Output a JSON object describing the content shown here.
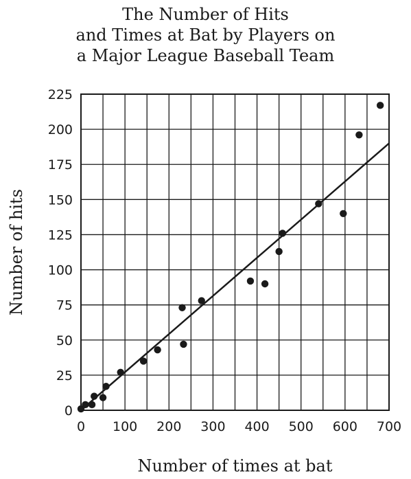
{
  "chart_data": {
    "type": "scatter",
    "title_lines": [
      "The Number of Hits",
      "and Times at Bat by Players on",
      "a Major League Baseball Team"
    ],
    "xlabel": "Number of times at bat",
    "ylabel": "Number of hits",
    "xlim": [
      0,
      700
    ],
    "ylim": [
      0,
      225
    ],
    "x_ticks": [
      0,
      100,
      200,
      300,
      400,
      500,
      600,
      700
    ],
    "y_ticks": [
      0,
      25,
      50,
      75,
      100,
      125,
      150,
      175,
      200,
      225
    ],
    "x_grid_step": 50,
    "y_grid_step": 25,
    "grid": true,
    "points": [
      {
        "x": 0,
        "y": 1
      },
      {
        "x": 10,
        "y": 4
      },
      {
        "x": 25,
        "y": 4
      },
      {
        "x": 30,
        "y": 10
      },
      {
        "x": 50,
        "y": 9
      },
      {
        "x": 57,
        "y": 17
      },
      {
        "x": 90,
        "y": 27
      },
      {
        "x": 142,
        "y": 35
      },
      {
        "x": 174,
        "y": 43
      },
      {
        "x": 230,
        "y": 73
      },
      {
        "x": 233,
        "y": 47
      },
      {
        "x": 274,
        "y": 78
      },
      {
        "x": 385,
        "y": 92
      },
      {
        "x": 418,
        "y": 90
      },
      {
        "x": 450,
        "y": 113
      },
      {
        "x": 458,
        "y": 126
      },
      {
        "x": 540,
        "y": 147
      },
      {
        "x": 596,
        "y": 140
      },
      {
        "x": 632,
        "y": 196
      },
      {
        "x": 680,
        "y": 217
      }
    ],
    "trend_line": {
      "x1": 0,
      "y1": 0,
      "x2": 700,
      "y2": 190
    }
  }
}
